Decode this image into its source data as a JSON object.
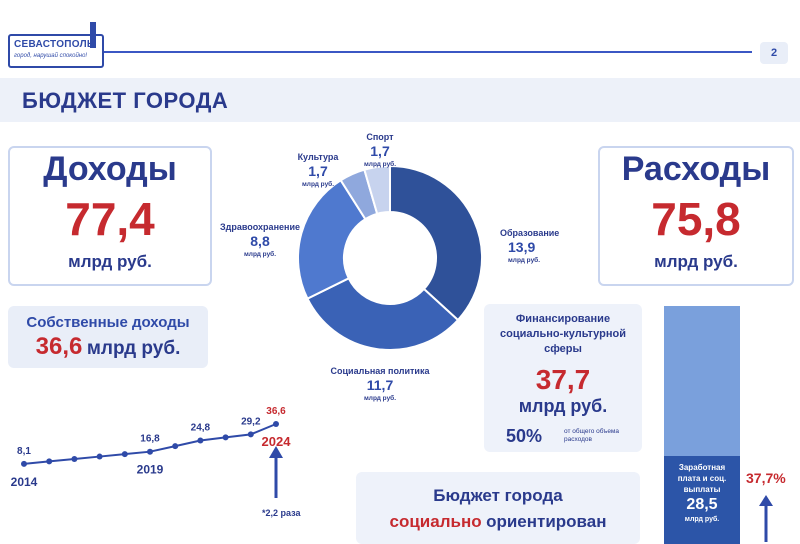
{
  "header": {
    "logo_title": "СЕВАСТОПОЛЬ",
    "logo_slogan": "город, нарушай спокойно!",
    "page_number": "2"
  },
  "title": "БЮДЖЕТ ГОРОДА",
  "income": {
    "label": "Доходы",
    "value": "77,4",
    "unit": "млрд руб."
  },
  "expenses": {
    "label": "Расходы",
    "value": "75,8",
    "unit": "млрд руб."
  },
  "own_income": {
    "label": "Собственные доходы",
    "value": "36,6",
    "unit": "млрд руб."
  },
  "financing": {
    "label": "Финансирование социально-культурной сферы",
    "value": "37,7",
    "unit": "млрд руб.",
    "percent": "50%",
    "percent_note": "от общего объема расходов"
  },
  "bottom_box": {
    "line1": "Бюджет города",
    "line2_red": "социально",
    "line2_blue": "ориентирован"
  },
  "colors": {
    "accent_red": "#c62a2f",
    "brand_blue": "#2a3a8c"
  },
  "chart_data": [
    {
      "type": "pie",
      "categories": [
        "Образование",
        "Социальная политика",
        "Здравоохранение",
        "Культура",
        "Спорт"
      ],
      "values": [
        13.9,
        11.7,
        8.8,
        1.7,
        1.7
      ],
      "value_labels": [
        "13,9",
        "11,7",
        "8,8",
        "1,7",
        "1,7"
      ],
      "unit": "млрд руб.",
      "colors": [
        "#2f5199",
        "#3a62b6",
        "#4f79cf",
        "#8fa8dd",
        "#c7d3ee"
      ]
    },
    {
      "type": "line",
      "x": [
        2014,
        2015,
        2016,
        2017,
        2018,
        2019,
        2020,
        2021,
        2022,
        2023,
        2024
      ],
      "y": [
        8.1,
        null,
        null,
        null,
        null,
        16.8,
        null,
        24.8,
        null,
        29.2,
        36.6
      ],
      "point_labels": {
        "2014": "8,1",
        "2019": "16,8",
        "2021": "24,8",
        "2023": "29,2",
        "2024": "36,6"
      },
      "year_labels": [
        "2014",
        "2019",
        "2024"
      ],
      "growth_note": "*2,2 раза"
    },
    {
      "type": "bar",
      "categories": [
        "Заработная плата и соц. выплаты"
      ],
      "values": [
        28.5
      ],
      "value_label": "28,5",
      "label": "Заработная плата и соц. выплаты",
      "unit": "млрд руб.",
      "share": "37,7%"
    }
  ]
}
